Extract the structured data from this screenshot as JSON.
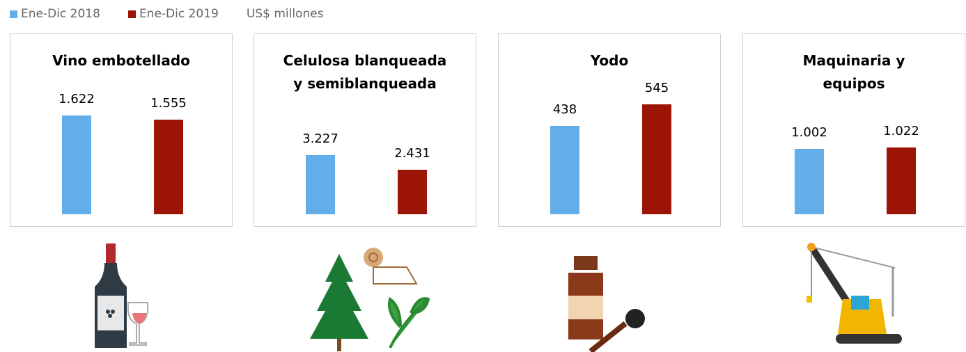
{
  "legend": [
    {
      "name": "Ene-Dic 2018",
      "color": "#63aee9"
    },
    {
      "name": "Ene-Dic 2019",
      "color": "#9c1406"
    }
  ],
  "unit": "US$ millones",
  "chart_data": [
    {
      "type": "bar",
      "title": "Vino embotellado",
      "values": [
        1622,
        1555
      ],
      "value_labels": [
        "1.622",
        "1.555"
      ],
      "ylim": [
        0,
        2284
      ]
    },
    {
      "type": "bar",
      "title": "Celulosa blanqueada y semiblanqueada",
      "values": [
        3227,
        2431
      ],
      "value_labels": [
        "3.227",
        "2.431"
      ],
      "ylim": [
        0,
        7593
      ]
    },
    {
      "type": "bar",
      "title": "Yodo",
      "values": [
        438,
        545
      ],
      "value_labels": [
        "438",
        "545"
      ],
      "ylim": [
        0,
        690
      ]
    },
    {
      "type": "bar",
      "title": "Maquinaria y equipos",
      "values": [
        1002,
        1022
      ],
      "value_labels": [
        "1.002",
        "1.022"
      ],
      "ylim": [
        0,
        2132
      ]
    }
  ]
}
